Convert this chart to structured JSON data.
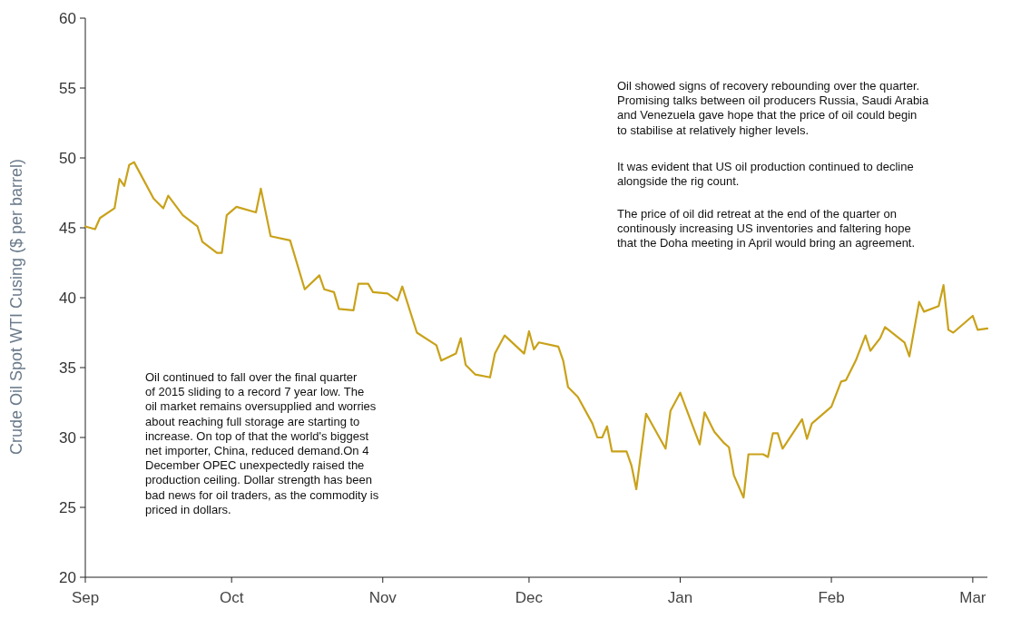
{
  "chart_data": {
    "type": "line",
    "ylabel": "Crude Oil Spot WTI Cusing ($ per barrel)",
    "x": [
      "2015-09-01",
      "2015-09-03",
      "2015-09-04",
      "2015-09-07",
      "2015-09-08",
      "2015-09-09",
      "2015-09-10",
      "2015-09-11",
      "2015-09-15",
      "2015-09-17",
      "2015-09-18",
      "2015-09-21",
      "2015-09-24",
      "2015-09-25",
      "2015-09-28",
      "2015-09-29",
      "2015-09-30",
      "2015-10-02",
      "2015-10-06",
      "2015-10-07",
      "2015-10-09",
      "2015-10-13",
      "2015-10-16",
      "2015-10-19",
      "2015-10-20",
      "2015-10-22",
      "2015-10-23",
      "2015-10-26",
      "2015-10-27",
      "2015-10-29",
      "2015-10-30",
      "2015-11-02",
      "2015-11-04",
      "2015-11-05",
      "2015-11-08",
      "2015-11-12",
      "2015-11-13",
      "2015-11-16",
      "2015-11-17",
      "2015-11-18",
      "2015-11-20",
      "2015-11-23",
      "2015-11-24",
      "2015-11-26",
      "2015-11-30",
      "2015-12-01",
      "2015-12-02",
      "2015-12-03",
      "2015-12-07",
      "2015-12-08",
      "2015-12-09",
      "2015-12-11",
      "2015-12-14",
      "2015-12-15",
      "2015-12-16",
      "2015-12-17",
      "2015-12-18",
      "2015-12-21",
      "2015-12-22",
      "2015-12-23",
      "2015-12-25",
      "2015-12-29",
      "2015-12-30",
      "2016-01-01",
      "2016-01-05",
      "2016-01-06",
      "2016-01-08",
      "2016-01-10",
      "2016-01-11",
      "2016-01-12",
      "2016-01-14",
      "2016-01-15",
      "2016-01-18",
      "2016-01-19",
      "2016-01-20",
      "2016-01-21",
      "2016-01-22",
      "2016-01-26",
      "2016-01-27",
      "2016-01-28",
      "2016-02-01",
      "2016-02-03",
      "2016-02-04",
      "2016-02-06",
      "2016-02-08",
      "2016-02-09",
      "2016-02-11",
      "2016-02-12",
      "2016-02-16",
      "2016-02-17",
      "2016-02-19",
      "2016-02-20",
      "2016-02-23",
      "2016-02-24",
      "2016-02-25",
      "2016-02-26",
      "2016-03-01",
      "2016-03-02",
      "2016-03-04"
    ],
    "series": [
      {
        "color": "#c9a21a",
        "values": [
          45.1,
          44.9,
          45.7,
          46.4,
          48.5,
          48.0,
          49.5,
          49.7,
          47.1,
          46.4,
          47.3,
          45.9,
          45.1,
          44.0,
          43.2,
          43.2,
          45.9,
          46.5,
          46.1,
          47.8,
          44.4,
          44.1,
          40.6,
          41.6,
          40.6,
          40.4,
          39.2,
          39.1,
          41.0,
          41.0,
          40.4,
          40.3,
          39.8,
          40.8,
          37.5,
          36.6,
          35.5,
          36.0,
          37.1,
          35.2,
          34.5,
          34.3,
          36.0,
          37.3,
          36.0,
          37.6,
          36.3,
          36.8,
          36.5,
          35.5,
          33.6,
          32.9,
          31.0,
          30.0,
          30.0,
          30.8,
          29.0,
          29.0,
          28.0,
          26.3,
          31.7,
          29.2,
          31.9,
          33.2,
          29.5,
          31.8,
          30.4,
          29.6,
          29.3,
          27.3,
          25.7,
          28.8,
          28.8,
          28.6,
          30.3,
          30.3,
          29.2,
          31.3,
          29.9,
          31.0,
          32.2,
          34.0,
          34.1,
          35.5,
          37.3,
          36.2,
          37.1,
          37.9,
          36.8,
          35.8,
          39.7,
          39.0,
          39.4,
          40.9,
          37.7,
          37.5,
          38.7,
          37.7,
          37.8
        ]
      }
    ],
    "xlim": [
      "2015-09-01",
      "2016-03-04"
    ],
    "xticks": [
      {
        "value": "2015-09-01",
        "label": "Sep"
      },
      {
        "value": "2015-10-01",
        "label": "Oct"
      },
      {
        "value": "2015-11-01",
        "label": "Nov"
      },
      {
        "value": "2015-12-01",
        "label": "Dec"
      },
      {
        "value": "2016-01-01",
        "label": "Jan"
      },
      {
        "value": "2016-02-01",
        "label": "Feb"
      },
      {
        "value": "2016-03-01",
        "label": "Mar"
      }
    ],
    "ylim": [
      20,
      60
    ],
    "yticks": [
      20,
      25,
      30,
      35,
      40,
      45,
      50,
      55,
      60
    ],
    "annotations": [
      "Oil continued to fall over the final quarter of 2015 sliding to a record 7 year low. The oil market remains oversupplied and worries about reaching full storage are starting to increase. On top of that the world's biggest net importer, China, reduced demand.On 4 December OPEC unexpectedly raised the production ceiling. Dollar strength has been bad news for oil traders, as the commodity is priced in dollars.",
      "Oil showed signs of recovery rebounding over the quarter. Promising talks between oil producers Russia, Saudi Arabia and Venezuela gave hope that the price of oil could begin to stabilise at relatively higher levels.",
      "It was evident that US oil production continued to decline alongside the rig count.",
      "The price of oil did retreat at the end of the quarter on continously increasing US inventories and faltering hope that the Doha meeting in April would bring an agreement."
    ]
  }
}
